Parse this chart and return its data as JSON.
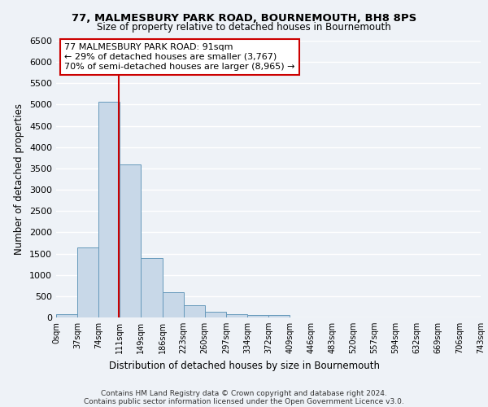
{
  "title_line1": "77, MALMESBURY PARK ROAD, BOURNEMOUTH, BH8 8PS",
  "title_line2": "Size of property relative to detached houses in Bournemouth",
  "xlabel": "Distribution of detached houses by size in Bournemouth",
  "ylabel": "Number of detached properties",
  "bar_values": [
    75,
    1650,
    5075,
    3600,
    1400,
    600,
    280,
    140,
    85,
    60,
    60,
    0,
    0,
    0,
    0,
    0,
    0,
    0,
    0,
    0
  ],
  "bin_labels": [
    "0sqm",
    "37sqm",
    "74sqm",
    "111sqm",
    "149sqm",
    "186sqm",
    "223sqm",
    "260sqm",
    "297sqm",
    "334sqm",
    "372sqm",
    "409sqm",
    "446sqm",
    "483sqm",
    "520sqm",
    "557sqm",
    "594sqm",
    "632sqm",
    "669sqm",
    "706sqm",
    "743sqm"
  ],
  "bar_color": "#c8d8e8",
  "bar_edge_color": "#6699bb",
  "vline_color": "#cc0000",
  "annotation_text": "77 MALMESBURY PARK ROAD: 91sqm\n← 29% of detached houses are smaller (3,767)\n70% of semi-detached houses are larger (8,965) →",
  "annotation_box_color": "white",
  "annotation_box_edge_color": "#cc0000",
  "ylim": [
    0,
    6500
  ],
  "yticks": [
    0,
    500,
    1000,
    1500,
    2000,
    2500,
    3000,
    3500,
    4000,
    4500,
    5000,
    5500,
    6000,
    6500
  ],
  "footer_line1": "Contains HM Land Registry data © Crown copyright and database right 2024.",
  "footer_line2": "Contains public sector information licensed under the Open Government Licence v3.0.",
  "background_color": "#eef2f7",
  "grid_color": "#ffffff"
}
